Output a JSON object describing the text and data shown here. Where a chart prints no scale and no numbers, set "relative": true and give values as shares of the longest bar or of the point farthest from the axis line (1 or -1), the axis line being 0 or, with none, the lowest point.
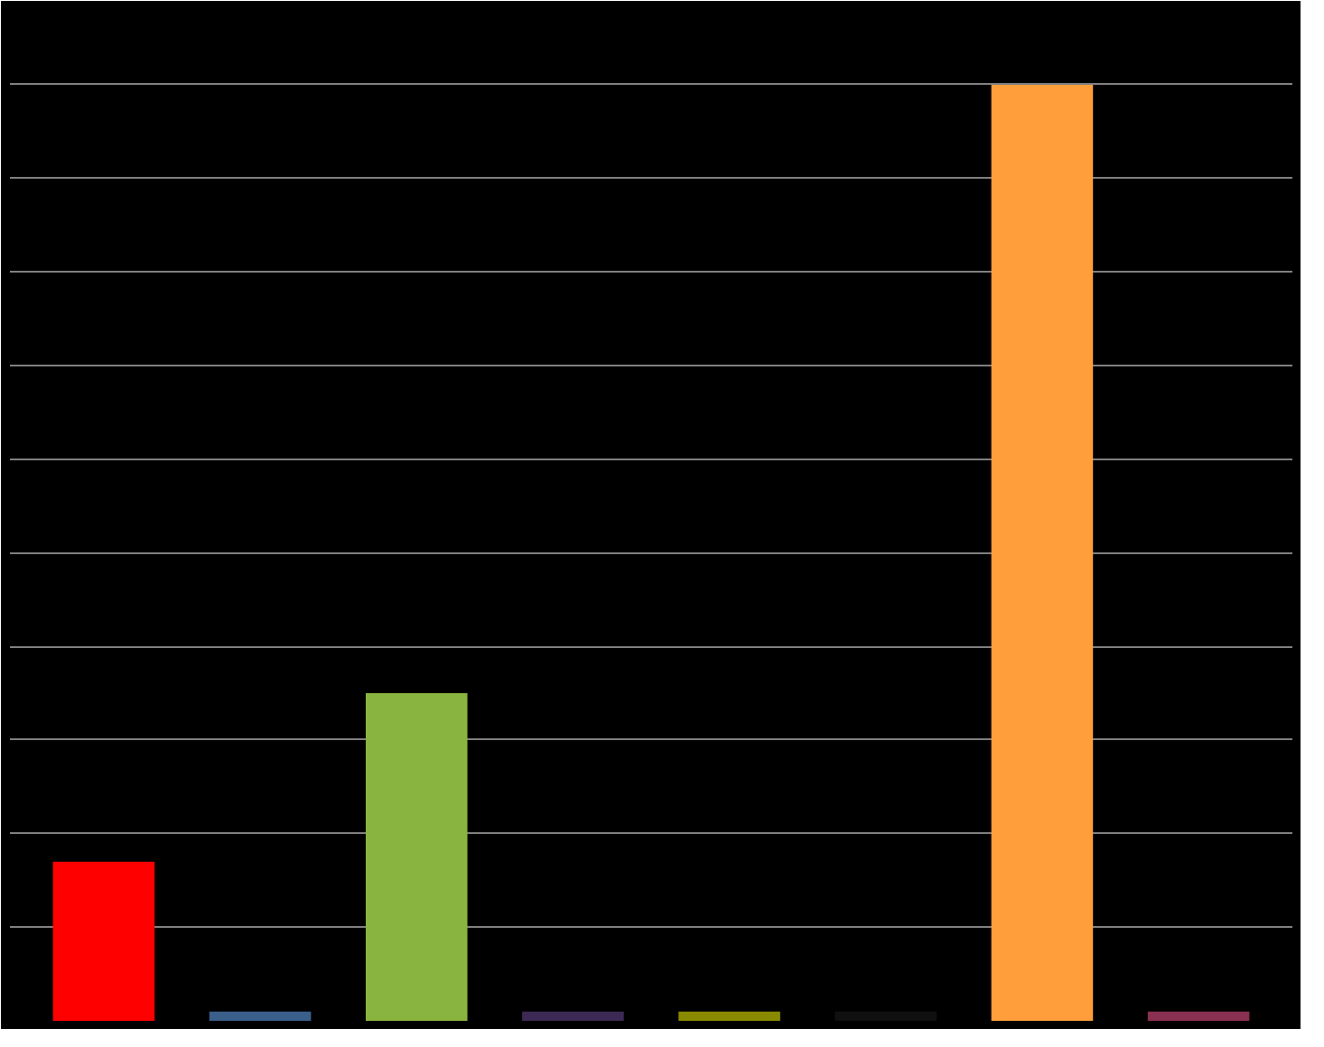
{
  "chart_data": {
    "type": "bar",
    "categories": [
      null,
      null,
      null,
      null,
      null,
      null,
      null,
      null
    ],
    "values": [
      0.17,
      0.01,
      0.35,
      0.01,
      0.01,
      0.01,
      1,
      0.01
    ],
    "colors": [
      "#ff0000",
      "#3a5f8a",
      "#8ab440",
      "#3c2a55",
      "#8a8a00",
      "#101010",
      "#ff9e3a",
      "#8a3050"
    ],
    "relative": true,
    "grid": "y"
  }
}
